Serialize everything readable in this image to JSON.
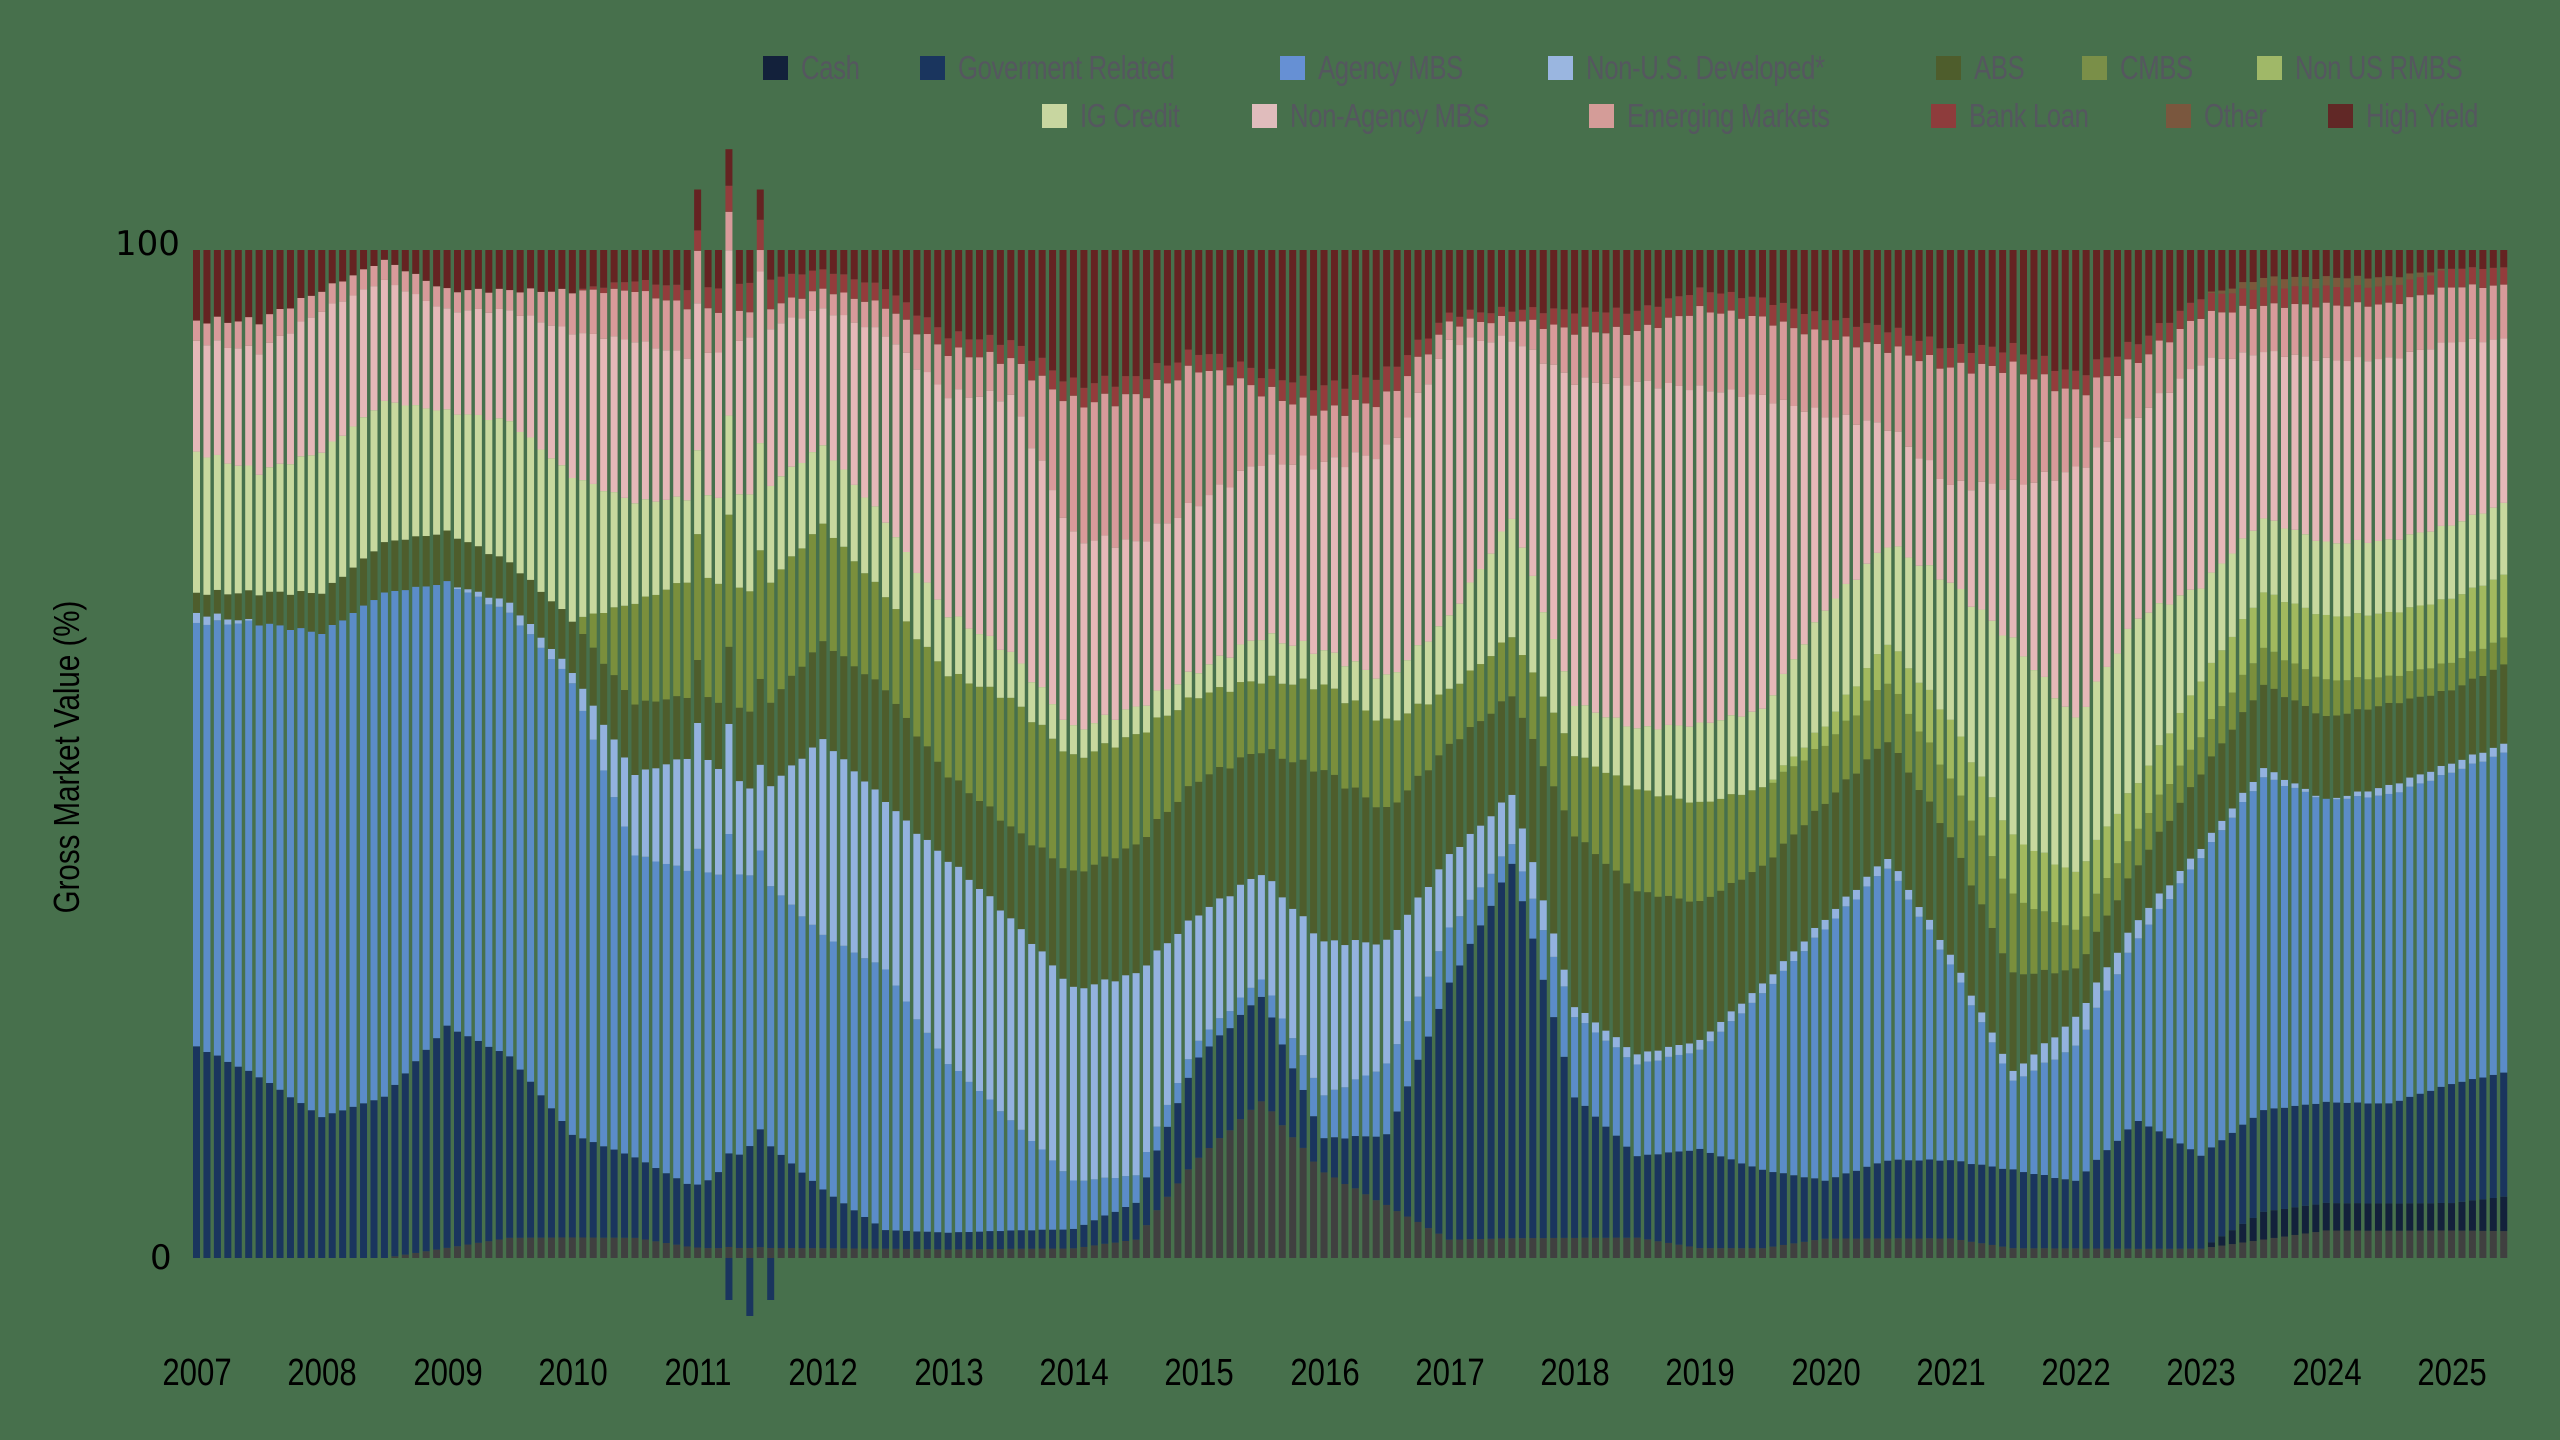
{
  "chart_data": {
    "type": "bar",
    "stacked": true,
    "title": "",
    "xlabel": "",
    "ylabel": "Gross Market Value (%)",
    "ylim": [
      0,
      100
    ],
    "y_ticks": [
      "100",
      "0"
    ],
    "x_ticks": [
      "2007",
      "2008",
      "2009",
      "2010",
      "2011",
      "2012",
      "2013",
      "2014",
      "2015",
      "2016",
      "2017",
      "2018",
      "2019",
      "2020",
      "2021",
      "2022",
      "2023",
      "2024",
      "2025"
    ],
    "frequency": "monthly",
    "grid": false,
    "legend_position": "top-right",
    "background": "#47704c",
    "x": [
      "2007.0",
      "2007.5",
      "2008.0",
      "2008.5",
      "2009.0",
      "2009.5",
      "2010.0",
      "2010.5",
      "2011.0",
      "2011.5",
      "2012.0",
      "2012.5",
      "2013.0",
      "2013.5",
      "2014.0",
      "2014.5",
      "2015.0",
      "2015.5",
      "2016.0",
      "2016.5",
      "2017.0",
      "2017.5",
      "2018.0",
      "2018.5",
      "2019.0",
      "2019.5",
      "2020.0",
      "2020.5",
      "2021.0",
      "2021.5",
      "2022.0",
      "2022.5",
      "2023.0",
      "2023.5",
      "2024.0",
      "2024.5",
      "2025.0",
      "2025.5"
    ],
    "series": [
      {
        "name": "Other",
        "color": "#404040",
        "values": [
          0,
          0,
          0,
          0,
          1,
          2,
          2,
          2,
          1,
          1,
          1,
          1,
          1,
          1,
          1,
          2,
          12,
          18,
          10,
          6,
          2,
          2,
          2,
          2,
          1,
          1,
          2,
          2,
          2,
          1,
          1,
          1,
          1,
          2,
          3,
          3,
          3,
          3
        ]
      },
      {
        "name": "Cash",
        "color": "#13213b",
        "values": [
          0,
          0,
          0,
          0,
          0,
          0,
          0,
          0,
          0,
          0,
          0,
          0,
          0,
          0,
          0,
          0,
          0,
          0,
          0,
          0,
          0,
          0,
          0,
          0,
          0,
          0,
          0,
          0,
          0,
          0,
          0,
          0,
          0,
          3,
          3,
          3,
          3,
          4
        ]
      },
      {
        "name": "Goverment Related",
        "color": "#1a355e",
        "values": [
          21,
          18,
          14,
          16,
          22,
          18,
          10,
          8,
          6,
          11,
          6,
          2,
          2,
          2,
          2,
          4,
          12,
          12,
          4,
          8,
          28,
          38,
          14,
          8,
          10,
          8,
          6,
          8,
          8,
          8,
          7,
          14,
          10,
          11,
          11,
          11,
          13,
          14
        ]
      },
      {
        "name": "Agency MBS",
        "color": "#5b8cc8",
        "values": [
          42,
          45,
          48,
          50,
          44,
          44,
          44,
          30,
          32,
          26,
          26,
          28,
          20,
          12,
          5,
          3,
          2,
          2,
          5,
          8,
          6,
          2,
          8,
          9,
          10,
          18,
          26,
          30,
          20,
          9,
          14,
          20,
          32,
          36,
          33,
          34,
          34,
          36
        ]
      },
      {
        "name": "Non-U.S. Developed*",
        "color": "#93b2df",
        "values": [
          1,
          0,
          0,
          0,
          0,
          1,
          1,
          8,
          12,
          8,
          20,
          18,
          24,
          22,
          20,
          22,
          15,
          12,
          18,
          14,
          8,
          5,
          1,
          1,
          1,
          1,
          1,
          1,
          1,
          1,
          3,
          2,
          1,
          1,
          0,
          1,
          1,
          1
        ]
      },
      {
        "name": "ABS",
        "color": "#4e5d2c",
        "values": [
          2,
          3,
          4,
          5,
          5,
          4,
          5,
          7,
          6,
          8,
          10,
          12,
          10,
          10,
          12,
          14,
          16,
          14,
          20,
          15,
          12,
          10,
          17,
          16,
          14,
          12,
          12,
          12,
          12,
          10,
          5,
          6,
          8,
          9,
          9,
          9,
          8,
          9
        ]
      },
      {
        "name": "CMBS",
        "color": "#7a8f3c",
        "values": [
          0,
          0,
          0,
          0,
          0,
          0,
          0,
          10,
          12,
          12,
          12,
          10,
          12,
          14,
          12,
          12,
          10,
          8,
          10,
          10,
          6,
          6,
          8,
          10,
          10,
          8,
          6,
          6,
          6,
          8,
          4,
          4,
          4,
          4,
          4,
          3,
          3,
          3
        ]
      },
      {
        "name": "Non US RMBS",
        "color": "#a2b95e",
        "values": [
          0,
          0,
          0,
          0,
          0,
          0,
          0,
          0,
          0,
          0,
          0,
          0,
          0,
          0,
          0,
          0,
          0,
          0,
          0,
          0,
          0,
          0,
          0,
          0,
          0,
          0,
          2,
          4,
          6,
          6,
          6,
          5,
          6,
          6,
          7,
          7,
          7,
          7
        ]
      },
      {
        "name": "IG Credit",
        "color": "#c8d89e",
        "values": [
          14,
          12,
          14,
          14,
          12,
          14,
          14,
          10,
          8,
          10,
          8,
          8,
          7,
          5,
          3,
          3,
          3,
          5,
          4,
          5,
          8,
          12,
          5,
          6,
          8,
          8,
          12,
          10,
          14,
          20,
          16,
          18,
          10,
          8,
          8,
          8,
          8,
          8
        ]
      },
      {
        "name": "Non-Agency MBS",
        "color": "#e6b8b8",
        "values": [
          11,
          12,
          14,
          12,
          10,
          11,
          14,
          16,
          14,
          16,
          14,
          20,
          26,
          28,
          20,
          18,
          20,
          20,
          22,
          26,
          30,
          18,
          32,
          34,
          34,
          32,
          20,
          12,
          10,
          16,
          26,
          22,
          24,
          18,
          20,
          20,
          20,
          18
        ]
      },
      {
        "name": "Emerging Markets",
        "color": "#d89a9a",
        "values": [
          2,
          3,
          2,
          2,
          2,
          2,
          4,
          5,
          5,
          2,
          2,
          3,
          5,
          4,
          14,
          16,
          16,
          8,
          6,
          6,
          2,
          2,
          5,
          5,
          8,
          8,
          8,
          8,
          12,
          12,
          8,
          6,
          5,
          5,
          6,
          6,
          6,
          6
        ]
      },
      {
        "name": "Bank Loan",
        "color": "#933c3c",
        "values": [
          0,
          0,
          0,
          0,
          0,
          0,
          0,
          1,
          2,
          3,
          2,
          2,
          2,
          2,
          2,
          2,
          2,
          2,
          3,
          3,
          1,
          1,
          2,
          2,
          2,
          2,
          2,
          2,
          2,
          2,
          2,
          2,
          2,
          2,
          2,
          2,
          2,
          2
        ]
      },
      {
        "name": "Other (top)",
        "color": "#7c583c",
        "values": [
          0,
          0,
          0,
          0,
          0,
          0,
          0,
          0,
          0,
          0,
          0,
          0,
          0,
          0,
          0,
          0,
          0,
          0,
          0,
          0,
          0,
          0,
          0,
          0,
          0,
          0,
          0,
          0,
          0,
          0,
          0,
          0,
          0,
          1,
          1,
          1,
          0,
          0
        ]
      },
      {
        "name": "High Yield",
        "color": "#652322",
        "values": [
          7,
          7,
          4,
          1,
          4,
          4,
          4,
          3,
          4,
          3,
          2,
          4,
          10,
          10,
          14,
          14,
          12,
          14,
          16,
          14,
          7,
          6,
          6,
          6,
          4,
          5,
          7,
          8,
          10,
          10,
          13,
          10,
          5,
          3,
          3,
          3,
          2,
          2
        ]
      }
    ],
    "annotations": {
      "above_100_spikes_year": "2011",
      "below_0_spikes_year": "2011"
    }
  },
  "legend": {
    "row1": [
      {
        "label": "Cash",
        "color": "#13213b"
      },
      {
        "label": "Goverment Related",
        "color": "#1a355e"
      },
      {
        "label": "Agency MBS",
        "color": "#6690d4"
      },
      {
        "label": "Non-U.S. Developed*",
        "color": "#9ab6e0"
      },
      {
        "label": "ABS",
        "color": "#4e5d2c"
      },
      {
        "label": "CMBS",
        "color": "#7a8f48"
      },
      {
        "label": "Non US RMBS",
        "color": "#a0b868"
      }
    ],
    "row2": [
      {
        "label": "IG Credit",
        "color": "#c8d6a0"
      },
      {
        "label": "Non-Agency MBS",
        "color": "#e0bcbc"
      },
      {
        "label": "Emerging Markets",
        "color": "#d49c98"
      },
      {
        "label": "Bank Loan",
        "color": "#8e3c3c"
      },
      {
        "label": "Other",
        "color": "#7a573e"
      },
      {
        "label": "High Yield",
        "color": "#612826"
      }
    ]
  },
  "axes": {
    "ylabel": "Gross Market Value (%)",
    "y_top": "100",
    "y_bottom": "0",
    "years": [
      "2007",
      "2008",
      "2009",
      "2010",
      "2011",
      "2012",
      "2013",
      "2014",
      "2015",
      "2016",
      "2017",
      "2018",
      "2019",
      "2020",
      "2021",
      "2022",
      "2023",
      "2024",
      "2025"
    ]
  }
}
